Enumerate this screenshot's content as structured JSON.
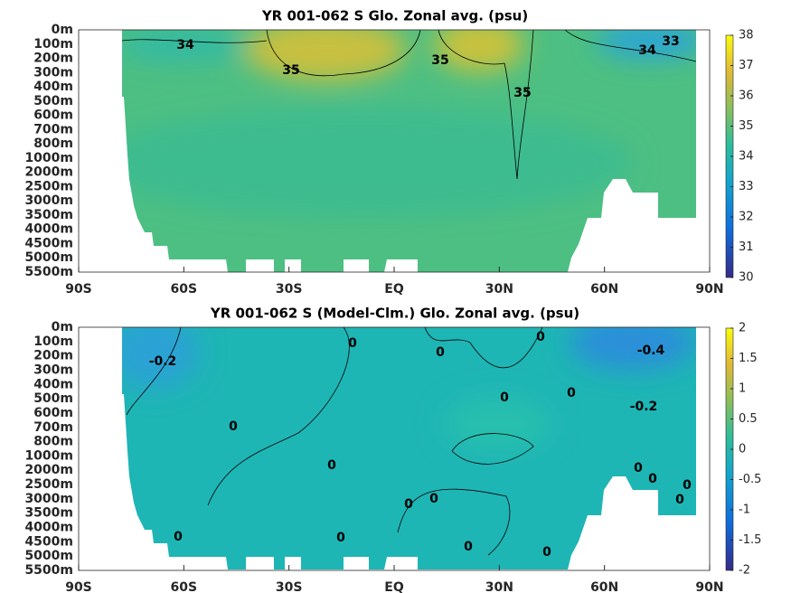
{
  "chart_data": [
    {
      "type": "contour",
      "title": "YR 001-062 S Glo. Zonal avg. (psu)",
      "y_categories": [
        "0m",
        "100m",
        "200m",
        "300m",
        "400m",
        "500m",
        "600m",
        "700m",
        "800m",
        "1000m",
        "2000m",
        "2500m",
        "3000m",
        "3500m",
        "4000m",
        "4500m",
        "5000m",
        "5500m"
      ],
      "xlim": [
        -90,
        90
      ],
      "xticks": [
        {
          "value": -90,
          "label": "90S"
        },
        {
          "value": -60,
          "label": "60S"
        },
        {
          "value": -30,
          "label": "30S"
        },
        {
          "value": 0,
          "label": "EQ"
        },
        {
          "value": 30,
          "label": "30N"
        },
        {
          "value": 60,
          "label": "60N"
        },
        {
          "value": 90,
          "label": "90N"
        }
      ],
      "colorbar_lim": [
        30,
        38
      ],
      "colorbar_ticks": [
        30,
        31,
        32,
        33,
        34,
        35,
        36,
        37,
        38
      ],
      "contour_labels": [
        34,
        35,
        35,
        35,
        34,
        33
      ]
    },
    {
      "type": "contour",
      "title": "YR 001-062 S (Model-Clm.) Glo. Zonal avg. (psu)",
      "y_categories": [
        "0m",
        "100m",
        "200m",
        "300m",
        "400m",
        "500m",
        "600m",
        "700m",
        "800m",
        "1000m",
        "2000m",
        "2500m",
        "3000m",
        "3500m",
        "4000m",
        "4500m",
        "5000m",
        "5500m"
      ],
      "xlim": [
        -90,
        90
      ],
      "xticks": [
        {
          "value": -90,
          "label": "90S"
        },
        {
          "value": -60,
          "label": "60S"
        },
        {
          "value": -30,
          "label": "30S"
        },
        {
          "value": 0,
          "label": "EQ"
        },
        {
          "value": 30,
          "label": "30N"
        },
        {
          "value": 60,
          "label": "60N"
        },
        {
          "value": 90,
          "label": "90N"
        }
      ],
      "colorbar_lim": [
        -2,
        2
      ],
      "colorbar_ticks": [
        -2,
        -1.5,
        -1,
        -0.5,
        0,
        0.5,
        1,
        1.5,
        2
      ],
      "contour_labels": [
        -0.2,
        0,
        0,
        0,
        -0.4,
        0,
        0,
        -0.2,
        0,
        0,
        0,
        0,
        0,
        0,
        0,
        0,
        0,
        0,
        0,
        0
      ]
    }
  ]
}
